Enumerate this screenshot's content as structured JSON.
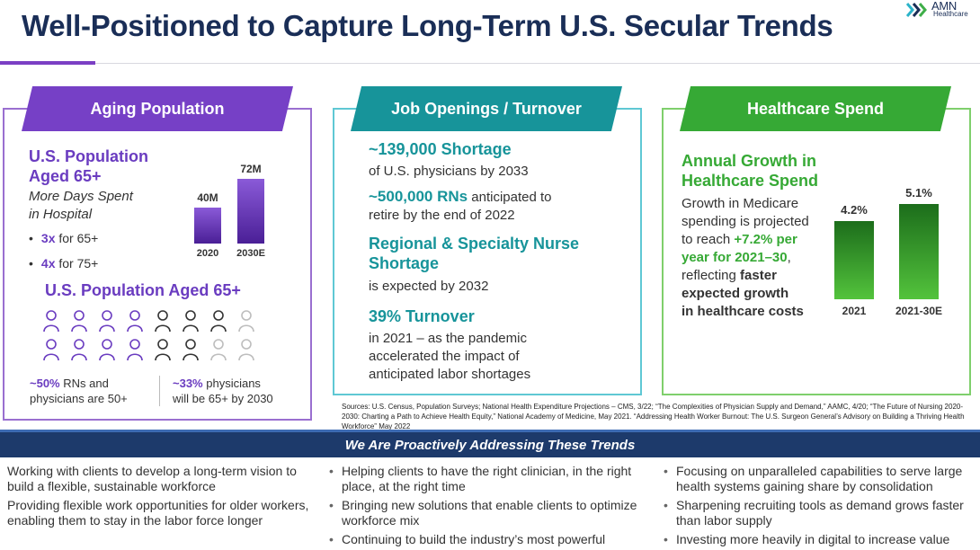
{
  "title": "Well-Positioned to Capture Long-Term U.S. Secular Trends",
  "logo": {
    "name": "AMN",
    "sub": "Healthcare"
  },
  "panels": {
    "aging": {
      "banner": "Aging Population",
      "heading_line1": "U.S. Population",
      "heading_line2": "Aged 65+",
      "subtitle_line1": "More Days Spent",
      "subtitle_line2": "in Hospital",
      "bullets": [
        {
          "bold": "3x",
          "text": " for 65+"
        },
        {
          "bold": "4x",
          "text": " for 75+"
        }
      ],
      "heading2": "U.S. Population Aged 65+",
      "stats": [
        {
          "bold": "~50%",
          "line1": " RNs and",
          "line2": "physicians are 50+"
        },
        {
          "bold": "~33%",
          "line1": " physicians",
          "line2": "will be 65+ by 2030"
        }
      ]
    },
    "jobs": {
      "banner": "Job Openings / Turnover",
      "h1": "~139,000 Shortage",
      "b1": "of U.S. physicians by 2033",
      "b2_bold": "~500,000 RNs",
      "b2_rest": " anticipated to",
      "b2_line2": "retire by the end of 2022",
      "h3_line1": "Regional & Specialty Nurse",
      "h3_line2": "Shortage",
      "b3": "is expected by 2032",
      "h4": "39% Turnover",
      "b4_line1": "in 2021 – as the pandemic",
      "b4_line2": "accelerated the impact of",
      "b4_line3": "anticipated labor shortages"
    },
    "spend": {
      "banner": "Healthcare Spend",
      "heading_line1": "Annual Growth in",
      "heading_line2": "Healthcare Spend",
      "body_line1": "Growth in Medicare",
      "body_line2": "spending is projected",
      "body_line3a": "to reach ",
      "body_line3b": "+7.2% per",
      "body_line4": "year for 2021–30",
      "body_line4b": ",",
      "body_line5a": "reflecting ",
      "body_line5b": "faster",
      "body_line6": "expected growth",
      "body_line7": "in healthcare costs"
    }
  },
  "chart_data": [
    {
      "type": "bar",
      "categories": [
        "2020",
        "2030E"
      ],
      "values": [
        40,
        72
      ],
      "value_labels": [
        "40M",
        "72M"
      ],
      "color": "#6a3cc0"
    },
    {
      "type": "bar",
      "categories": [
        "2021",
        "2021-30E"
      ],
      "values": [
        4.2,
        5.1
      ],
      "value_labels": [
        "4.2%",
        "5.1%"
      ],
      "color": "#36a935"
    }
  ],
  "people": {
    "rows": [
      [
        "purple",
        "purple",
        "purple",
        "purple",
        "dark",
        "dark",
        "dark",
        "gray"
      ],
      [
        "purple",
        "purple",
        "purple",
        "purple",
        "dark",
        "dark",
        "gray",
        "gray"
      ]
    ]
  },
  "sources": "Sources: U.S. Census, Population Surveys; National Health Expenditure Projections – CMS, 3/22; “The Complexities of Physician Supply and Demand,” AAMC, 4/20; “The Future of Nursing 2020-2030: Charting a Path to Achieve Health Equity,” National Academy of Medicine, May 2021. “Addressing Health Worker Burnout: The U.S. Surgeon General’s Advisory on Building a Thriving Health Workforce” May 2022",
  "footer": {
    "banner": "We Are Proactively Addressing These Trends",
    "col1": [
      "Working with clients to develop a long-term vision to build a flexible, sustainable workforce",
      "Providing flexible work opportunities for older workers, enabling them to stay in the labor force longer"
    ],
    "col2": [
      "Helping clients to have the right clinician, in the right place, at the right time",
      "Bringing new solutions that enable clients to optimize workforce mix",
      "Continuing to build the industry’s most powerful"
    ],
    "col3": [
      "Focusing on unparalleled capabilities to serve large health systems gaining share by consolidation",
      "Sharpening recruiting tools as demand grows faster than labor supply",
      "Investing more heavily in digital to increase value"
    ]
  },
  "colors": {
    "navy": "#1a2e57",
    "purple": "#7640c6",
    "teal": "#17949a",
    "green": "#36a935"
  }
}
